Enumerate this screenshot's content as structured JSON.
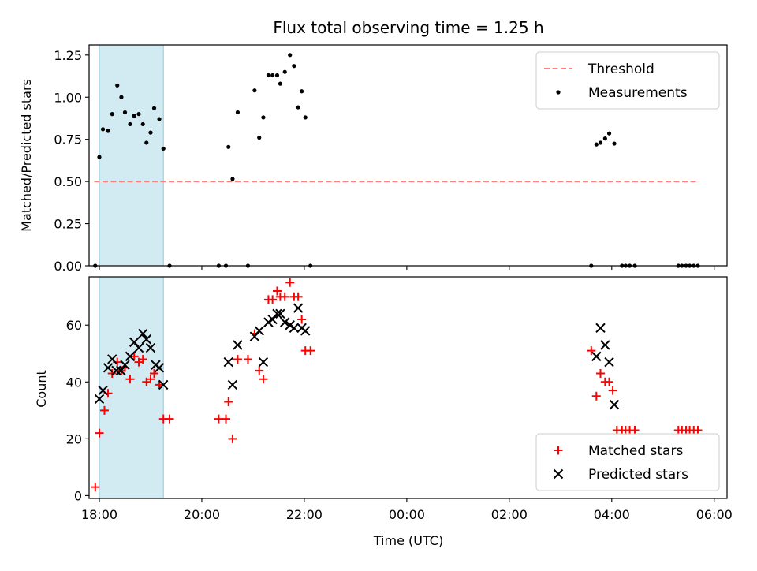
{
  "chart_data": [
    {
      "type": "scatter",
      "title": "Flux total observing time = 1.25 h",
      "xlabel": "",
      "ylabel": "Matched/Predicted stars",
      "xlim": [
        -0.2,
        12.25
      ],
      "ylim": [
        0,
        1.31
      ],
      "yticks": [
        {
          "v": 0.0,
          "label": "0.00"
        },
        {
          "v": 0.25,
          "label": "0.25"
        },
        {
          "v": 0.5,
          "label": "0.50"
        },
        {
          "v": 0.75,
          "label": "0.75"
        },
        {
          "v": 1.0,
          "label": "1.00"
        },
        {
          "v": 1.25,
          "label": "1.25"
        }
      ],
      "highlight_span": {
        "x0": 0.0,
        "x1": 1.25,
        "color": "#add8e6"
      },
      "legend_position": "upper right",
      "threshold": {
        "name": "Threshold",
        "y": 0.5,
        "x0": -0.1,
        "x1": 11.7,
        "color": "#ff7f7f"
      },
      "series": [
        {
          "name": "Measurements",
          "marker": "dot",
          "color": "#000000",
          "points": [
            [
              -0.08,
              0.0
            ],
            [
              0.0,
              0.645
            ],
            [
              0.07,
              0.81
            ],
            [
              0.17,
              0.8
            ],
            [
              0.25,
              0.9
            ],
            [
              0.35,
              1.07
            ],
            [
              0.43,
              1.0
            ],
            [
              0.5,
              0.91
            ],
            [
              0.6,
              0.84
            ],
            [
              0.68,
              0.89
            ],
            [
              0.77,
              0.9
            ],
            [
              0.85,
              0.84
            ],
            [
              0.92,
              0.73
            ],
            [
              1.0,
              0.79
            ],
            [
              1.07,
              0.935
            ],
            [
              1.17,
              0.87
            ],
            [
              1.25,
              0.695
            ],
            [
              1.37,
              0.0
            ],
            [
              2.33,
              0.0
            ],
            [
              2.47,
              0.0
            ],
            [
              2.52,
              0.705
            ],
            [
              2.6,
              0.515
            ],
            [
              2.7,
              0.91
            ],
            [
              2.9,
              0.0
            ],
            [
              3.03,
              1.04
            ],
            [
              3.12,
              0.76
            ],
            [
              3.2,
              0.88
            ],
            [
              3.3,
              1.13
            ],
            [
              3.38,
              1.13
            ],
            [
              3.47,
              1.13
            ],
            [
              3.53,
              1.08
            ],
            [
              3.62,
              1.15
            ],
            [
              3.72,
              1.25
            ],
            [
              3.8,
              1.185
            ],
            [
              3.88,
              0.94
            ],
            [
              3.95,
              1.035
            ],
            [
              4.02,
              0.88
            ],
            [
              4.12,
              0.0
            ],
            [
              9.6,
              0.0
            ],
            [
              9.7,
              0.72
            ],
            [
              9.78,
              0.73
            ],
            [
              9.87,
              0.755
            ],
            [
              9.95,
              0.785
            ],
            [
              10.05,
              0.725
            ],
            [
              10.2,
              0.0
            ],
            [
              10.27,
              0.0
            ],
            [
              10.35,
              0.0
            ],
            [
              10.45,
              0.0
            ],
            [
              11.3,
              0.0
            ],
            [
              11.37,
              0.0
            ],
            [
              11.45,
              0.0
            ],
            [
              11.52,
              0.0
            ],
            [
              11.6,
              0.0
            ],
            [
              11.68,
              0.0
            ]
          ]
        }
      ]
    },
    {
      "type": "scatter",
      "title": "",
      "xlabel": "Time (UTC)",
      "ylabel": "Count",
      "xlim": [
        -0.2,
        12.25
      ],
      "ylim": [
        -1,
        77
      ],
      "xticks": [
        {
          "v": 0,
          "label": "18:00"
        },
        {
          "v": 2,
          "label": "20:00"
        },
        {
          "v": 4,
          "label": "22:00"
        },
        {
          "v": 6,
          "label": "00:00"
        },
        {
          "v": 8,
          "label": "02:00"
        },
        {
          "v": 10,
          "label": "04:00"
        },
        {
          "v": 12,
          "label": "06:00"
        }
      ],
      "yticks": [
        {
          "v": 0,
          "label": "0"
        },
        {
          "v": 20,
          "label": "20"
        },
        {
          "v": 40,
          "label": "40"
        },
        {
          "v": 60,
          "label": "60"
        }
      ],
      "highlight_span": {
        "x0": 0.0,
        "x1": 1.25,
        "color": "#add8e6"
      },
      "legend_position": "lower right",
      "series": [
        {
          "name": "Matched stars",
          "marker": "plus",
          "color": "#ff0000",
          "points": [
            [
              -0.08,
              3
            ],
            [
              0.0,
              22
            ],
            [
              0.1,
              30
            ],
            [
              0.17,
              36
            ],
            [
              0.25,
              43
            ],
            [
              0.35,
              47
            ],
            [
              0.43,
              44
            ],
            [
              0.5,
              45
            ],
            [
              0.6,
              41
            ],
            [
              0.68,
              49
            ],
            [
              0.77,
              47
            ],
            [
              0.85,
              48
            ],
            [
              0.92,
              40
            ],
            [
              1.0,
              41
            ],
            [
              1.07,
              43
            ],
            [
              1.17,
              39
            ],
            [
              1.25,
              27
            ],
            [
              1.37,
              27
            ],
            [
              2.33,
              27
            ],
            [
              2.47,
              27
            ],
            [
              2.52,
              33
            ],
            [
              2.6,
              20
            ],
            [
              2.7,
              48
            ],
            [
              2.9,
              48
            ],
            [
              3.03,
              57
            ],
            [
              3.12,
              44
            ],
            [
              3.2,
              41
            ],
            [
              3.3,
              69
            ],
            [
              3.38,
              69
            ],
            [
              3.47,
              72
            ],
            [
              3.53,
              70
            ],
            [
              3.62,
              70
            ],
            [
              3.72,
              75
            ],
            [
              3.8,
              70
            ],
            [
              3.88,
              70
            ],
            [
              3.95,
              62
            ],
            [
              4.02,
              51
            ],
            [
              4.12,
              51
            ],
            [
              9.6,
              51
            ],
            [
              9.7,
              35
            ],
            [
              9.78,
              43
            ],
            [
              9.87,
              40
            ],
            [
              9.95,
              40
            ],
            [
              10.02,
              37
            ],
            [
              10.1,
              23
            ],
            [
              10.2,
              23
            ],
            [
              10.27,
              23
            ],
            [
              10.35,
              23
            ],
            [
              10.45,
              23
            ],
            [
              11.3,
              23
            ],
            [
              11.37,
              23
            ],
            [
              11.45,
              23
            ],
            [
              11.52,
              23
            ],
            [
              11.6,
              23
            ],
            [
              11.68,
              23
            ]
          ]
        },
        {
          "name": "Predicted stars",
          "marker": "cross",
          "color": "#000000",
          "points": [
            [
              0.0,
              34
            ],
            [
              0.07,
              37
            ],
            [
              0.17,
              45
            ],
            [
              0.25,
              48
            ],
            [
              0.33,
              44
            ],
            [
              0.42,
              44
            ],
            [
              0.5,
              46
            ],
            [
              0.6,
              49
            ],
            [
              0.68,
              54
            ],
            [
              0.77,
              52
            ],
            [
              0.85,
              57
            ],
            [
              0.92,
              55
            ],
            [
              1.0,
              52
            ],
            [
              1.1,
              46
            ],
            [
              1.17,
              45
            ],
            [
              1.25,
              39
            ],
            [
              2.52,
              47
            ],
            [
              2.6,
              39
            ],
            [
              2.7,
              53
            ],
            [
              3.03,
              56
            ],
            [
              3.12,
              58
            ],
            [
              3.2,
              47
            ],
            [
              3.3,
              61
            ],
            [
              3.38,
              62
            ],
            [
              3.47,
              64
            ],
            [
              3.53,
              64
            ],
            [
              3.62,
              61
            ],
            [
              3.72,
              60
            ],
            [
              3.8,
              59
            ],
            [
              3.88,
              66
            ],
            [
              3.95,
              59
            ],
            [
              4.02,
              58
            ],
            [
              9.7,
              49
            ],
            [
              9.78,
              59
            ],
            [
              9.87,
              53
            ],
            [
              9.95,
              47
            ],
            [
              10.05,
              32
            ]
          ]
        }
      ]
    }
  ]
}
